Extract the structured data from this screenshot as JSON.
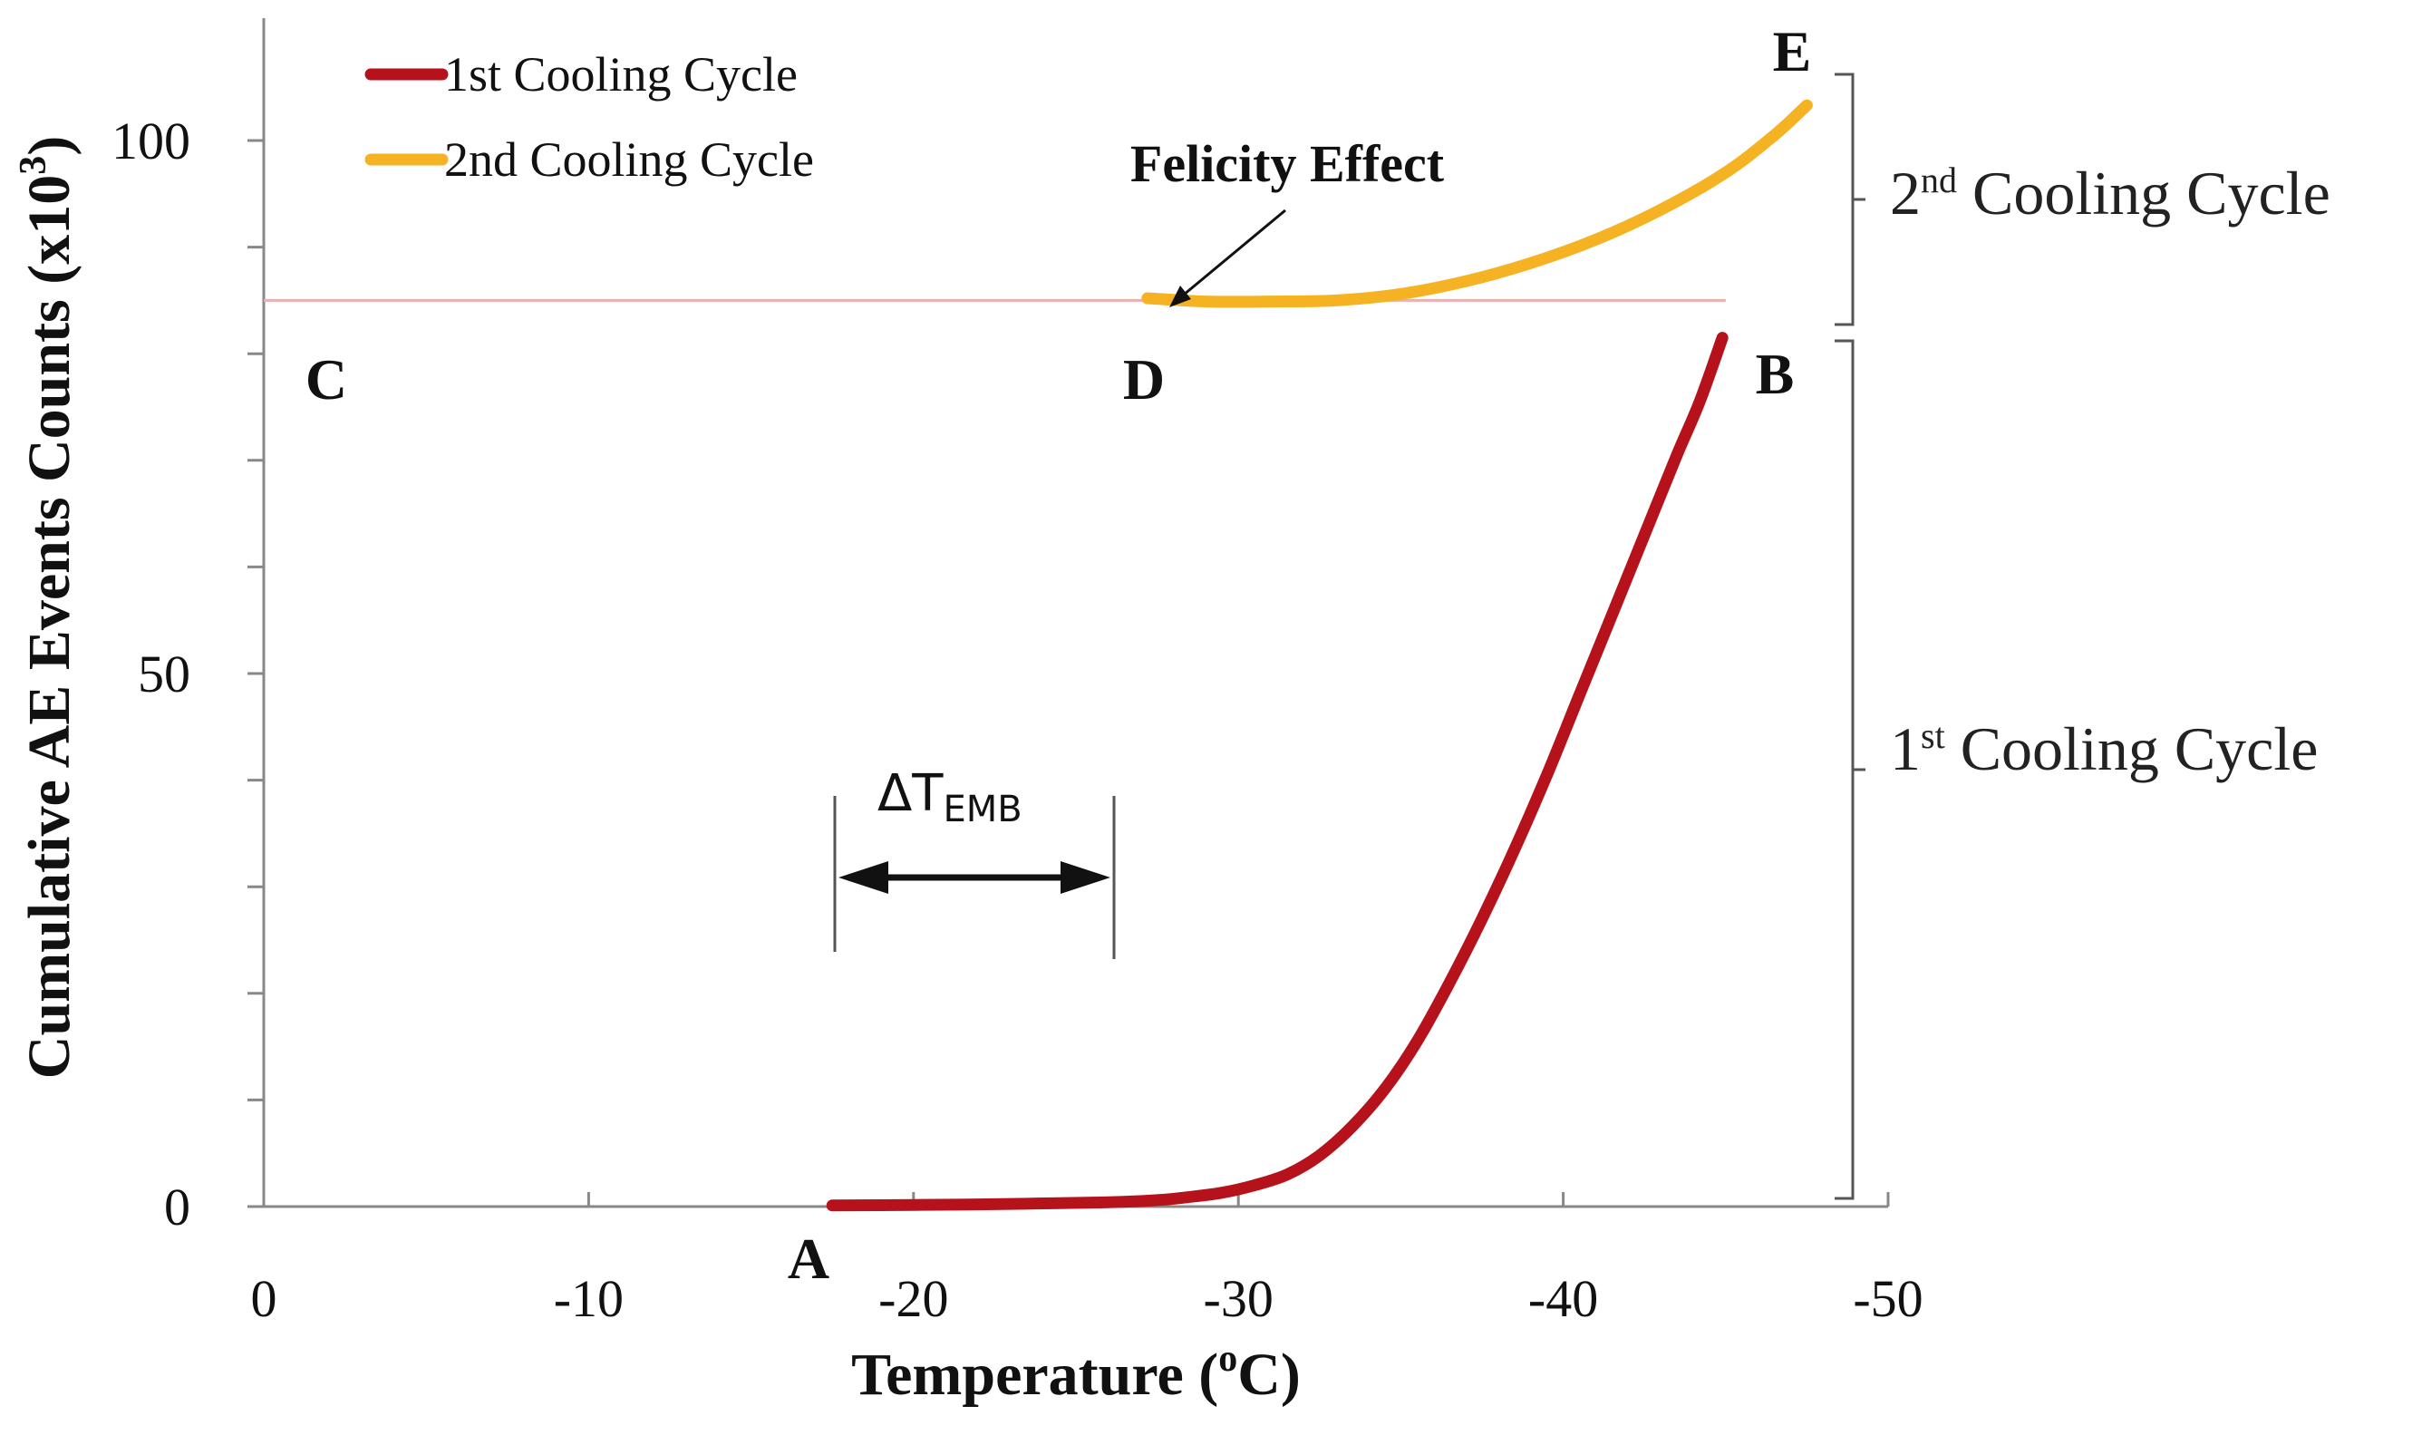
{
  "chart_data": {
    "type": "line",
    "xlabel": "Temperature (",
    "xlabel_sup": "o",
    "xlabel_tail": "C)",
    "ylabel": "Cumulative AE Events Counts (x10",
    "ylabel_sup": "3",
    "ylabel_tail": ")",
    "xlim": [
      0,
      -50
    ],
    "ylim": [
      0,
      110
    ],
    "x_ticks": [
      0,
      -10,
      -20,
      -30,
      -40,
      -50
    ],
    "x_tick_labels": [
      "0",
      "-10",
      "-20",
      "-30",
      "-40",
      "-50"
    ],
    "y_minor_ticks": [
      10,
      20,
      30,
      40,
      60,
      70,
      80,
      90
    ],
    "y_ticks": [
      0,
      50,
      100
    ],
    "y_tick_labels": [
      "0",
      "50",
      "100"
    ],
    "series": [
      {
        "name": "1st Cooling Cycle",
        "color": "#b5121b",
        "x": [
          -17.5,
          -20,
          -22,
          -24,
          -26,
          -27.5,
          -28.5,
          -29.5,
          -30.5,
          -31.5,
          -32.5,
          -33.5,
          -34.5,
          -35.5,
          -36.5,
          -37.5,
          -38.5,
          -39.5,
          -40.5,
          -41.5,
          -42.5,
          -43.5,
          -44.2,
          -44.9
        ],
        "y": [
          0.1,
          0.15,
          0.2,
          0.3,
          0.4,
          0.6,
          0.9,
          1.3,
          2.0,
          3.0,
          4.8,
          7.5,
          11.0,
          15.5,
          21.0,
          27.0,
          33.5,
          40.5,
          48.0,
          55.5,
          63.0,
          70.5,
          75.5,
          81.5
        ]
      },
      {
        "name": "2nd Cooling Cycle",
        "color": "#f5b324",
        "x": [
          -27.2,
          -29,
          -31,
          -33,
          -35,
          -37,
          -39,
          -41,
          -43,
          -45,
          -46.5,
          -47.5
        ],
        "y": [
          85.2,
          84.9,
          84.9,
          85.0,
          85.6,
          86.8,
          88.5,
          90.7,
          93.5,
          97.0,
          100.5,
          103.3
        ]
      }
    ],
    "felicity_line_y": 85,
    "points": [
      {
        "label": "A",
        "x": -17.5,
        "y": 0
      },
      {
        "label": "B",
        "x": -45,
        "y": 85
      },
      {
        "label": "C",
        "x": 0,
        "y": 85
      },
      {
        "label": "D",
        "x": -27.2,
        "y": 85
      },
      {
        "label": "E",
        "x": -47.5,
        "y": 103.3
      }
    ],
    "annotations": {
      "felicity": "Felicity Effect",
      "delta_symbol": "ΔT",
      "delta_sub": "EMB",
      "delta_x_range": [
        -17.5,
        -26
      ]
    },
    "brackets": [
      {
        "label_main": "2",
        "label_sup": "nd",
        "label_tail": " Cooling Cycle",
        "y_range": [
          85,
          104
        ]
      },
      {
        "label_main": "1",
        "label_sup": "st",
        "label_tail": " Cooling Cycle",
        "y_range": [
          0,
          84
        ]
      }
    ],
    "legend": {
      "position": "top-left",
      "entries": [
        "1st Cooling Cycle",
        "2nd Cooling Cycle"
      ]
    }
  }
}
